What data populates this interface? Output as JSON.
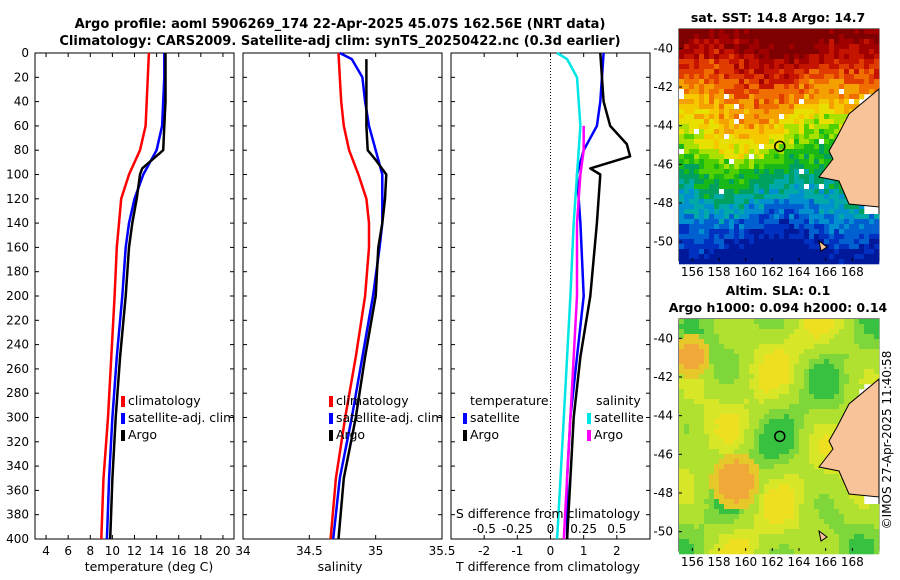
{
  "header": {
    "line1": "Argo profile: aoml 5906269_174 22-Apr-2025 45.07S 162.56E (NRT data)",
    "line2": "Climatology: CARS2009. Satellite-adj clim: synTS_20250422.nc (0.3d earlier)"
  },
  "colors": {
    "red": "#ff0000",
    "blue": "#0000ff",
    "black": "#000000",
    "cyan": "#00e5e5",
    "magenta": "#ff00ff"
  },
  "chart_data": [
    {
      "type": "line",
      "id": "temperature",
      "xlabel": "temperature (deg C)",
      "ylabel": "",
      "xlim": [
        3,
        21
      ],
      "ylim": [
        400,
        0
      ],
      "xticks": [
        4,
        6,
        8,
        10,
        12,
        14,
        16,
        18,
        20
      ],
      "yticks": [
        0,
        20,
        40,
        60,
        80,
        100,
        120,
        140,
        160,
        180,
        200,
        220,
        240,
        260,
        280,
        300,
        320,
        340,
        360,
        380,
        400
      ],
      "legend": [
        "climatology",
        "satellite-adj. clim",
        "Argo"
      ],
      "series": [
        {
          "name": "climatology",
          "color": "red",
          "points": [
            [
              13.3,
              0
            ],
            [
              13.2,
              20
            ],
            [
              13.1,
              40
            ],
            [
              13.0,
              60
            ],
            [
              12.5,
              80
            ],
            [
              11.5,
              100
            ],
            [
              10.8,
              120
            ],
            [
              10.6,
              140
            ],
            [
              10.4,
              160
            ],
            [
              10.2,
              200
            ],
            [
              9.9,
              250
            ],
            [
              9.6,
              300
            ],
            [
              9.2,
              350
            ],
            [
              9.0,
              400
            ]
          ]
        },
        {
          "name": "satellite-adj. clim",
          "color": "blue",
          "points": [
            [
              14.7,
              0
            ],
            [
              14.7,
              20
            ],
            [
              14.6,
              40
            ],
            [
              14.5,
              60
            ],
            [
              14.0,
              80
            ],
            [
              12.8,
              100
            ],
            [
              12.0,
              120
            ],
            [
              11.5,
              140
            ],
            [
              11.2,
              160
            ],
            [
              10.9,
              200
            ],
            [
              10.4,
              250
            ],
            [
              10.0,
              300
            ],
            [
              9.7,
              350
            ],
            [
              9.5,
              400
            ]
          ]
        },
        {
          "name": "Argo",
          "color": "black",
          "points": [
            [
              14.8,
              0
            ],
            [
              14.8,
              20
            ],
            [
              14.8,
              40
            ],
            [
              14.7,
              60
            ],
            [
              14.6,
              80
            ],
            [
              12.7,
              95
            ],
            [
              12.5,
              100
            ],
            [
              12.2,
              120
            ],
            [
              11.8,
              140
            ],
            [
              11.5,
              160
            ],
            [
              11.2,
              200
            ],
            [
              10.7,
              250
            ],
            [
              10.3,
              300
            ],
            [
              10.0,
              350
            ],
            [
              9.8,
              400
            ]
          ]
        }
      ]
    },
    {
      "type": "line",
      "id": "salinity",
      "xlabel": "salinity",
      "ylabel": "",
      "xlim": [
        34,
        35.5
      ],
      "ylim": [
        400,
        0
      ],
      "xticks": [
        34,
        34.5,
        35,
        35.5
      ],
      "legend": [
        "climatology",
        "satellite-adj. clim",
        "Argo"
      ],
      "series": [
        {
          "name": "climatology",
          "color": "red",
          "points": [
            [
              34.72,
              0
            ],
            [
              34.73,
              20
            ],
            [
              34.74,
              40
            ],
            [
              34.76,
              60
            ],
            [
              34.8,
              80
            ],
            [
              34.87,
              100
            ],
            [
              34.93,
              120
            ],
            [
              34.95,
              140
            ],
            [
              34.95,
              160
            ],
            [
              34.92,
              200
            ],
            [
              34.85,
              250
            ],
            [
              34.77,
              300
            ],
            [
              34.7,
              350
            ],
            [
              34.66,
              400
            ]
          ]
        },
        {
          "name": "satellite-adj. clim",
          "color": "blue",
          "points": [
            [
              34.73,
              0
            ],
            [
              34.82,
              5
            ],
            [
              34.9,
              20
            ],
            [
              34.92,
              40
            ],
            [
              34.95,
              60
            ],
            [
              35.0,
              80
            ],
            [
              35.05,
              100
            ],
            [
              35.05,
              120
            ],
            [
              35.05,
              140
            ],
            [
              35.03,
              160
            ],
            [
              34.98,
              200
            ],
            [
              34.9,
              250
            ],
            [
              34.82,
              300
            ],
            [
              34.73,
              350
            ],
            [
              34.68,
              400
            ]
          ]
        },
        {
          "name": "Argo",
          "color": "black",
          "points": [
            [
              34.93,
              5
            ],
            [
              34.93,
              20
            ],
            [
              34.93,
              40
            ],
            [
              34.93,
              60
            ],
            [
              34.94,
              80
            ],
            [
              35.0,
              88
            ],
            [
              35.08,
              100
            ],
            [
              35.07,
              120
            ],
            [
              35.05,
              140
            ],
            [
              35.02,
              160
            ],
            [
              35.0,
              200
            ],
            [
              34.92,
              250
            ],
            [
              34.85,
              300
            ],
            [
              34.76,
              350
            ],
            [
              34.72,
              400
            ]
          ]
        }
      ]
    },
    {
      "type": "line",
      "id": "difference",
      "xlabel": "T difference from climatology",
      "top_xlabel": "S difference from climatology",
      "xlim": [
        -3,
        3
      ],
      "ylim": [
        400,
        0
      ],
      "xticks": [
        -2,
        -1,
        0,
        1,
        2
      ],
      "top_xticks": [
        -0.5,
        -0.25,
        0,
        0.25,
        0.5
      ],
      "legend_left": {
        "title": "temperature",
        "items": [
          "satellite",
          "Argo"
        ]
      },
      "legend_right": {
        "title": "salinity",
        "items": [
          "satellite",
          "Argo"
        ]
      },
      "series": [
        {
          "name": "temperature satellite",
          "color": "blue",
          "points": [
            [
              1.6,
              0
            ],
            [
              1.5,
              40
            ],
            [
              1.4,
              60
            ],
            [
              1.0,
              80
            ],
            [
              0.8,
              100
            ],
            [
              0.9,
              140
            ],
            [
              1.0,
              200
            ],
            [
              0.8,
              250
            ],
            [
              0.6,
              300
            ],
            [
              0.5,
              350
            ],
            [
              0.5,
              400
            ]
          ]
        },
        {
          "name": "temperature Argo",
          "color": "black",
          "points": [
            [
              1.5,
              0
            ],
            [
              1.6,
              40
            ],
            [
              1.8,
              60
            ],
            [
              2.3,
              75
            ],
            [
              2.4,
              85
            ],
            [
              1.2,
              95
            ],
            [
              1.5,
              100
            ],
            [
              1.4,
              140
            ],
            [
              1.2,
              200
            ],
            [
              0.9,
              250
            ],
            [
              0.7,
              300
            ],
            [
              0.6,
              350
            ],
            [
              0.5,
              400
            ]
          ]
        },
        {
          "name": "salinity satellite",
          "color": "cyan",
          "points": [
            [
              0.2,
              0
            ],
            [
              0.5,
              5
            ],
            [
              0.8,
              20
            ],
            [
              0.9,
              60
            ],
            [
              0.8,
              100
            ],
            [
              0.7,
              140
            ],
            [
              0.6,
              200
            ],
            [
              0.5,
              250
            ],
            [
              0.4,
              300
            ],
            [
              0.3,
              350
            ],
            [
              0.2,
              400
            ]
          ]
        },
        {
          "name": "salinity Argo",
          "color": "magenta",
          "points": [
            [
              1.0,
              60
            ],
            [
              1.0,
              80
            ],
            [
              0.9,
              100
            ],
            [
              0.8,
              140
            ],
            [
              0.8,
              200
            ],
            [
              0.7,
              250
            ],
            [
              0.6,
              300
            ],
            [
              0.5,
              350
            ],
            [
              0.4,
              400
            ]
          ]
        }
      ]
    },
    {
      "type": "heatmap",
      "id": "sst-map",
      "title": "sat. SST: 14.8 Argo: 14.7",
      "xticks": [
        156,
        158,
        160,
        162,
        164,
        166,
        168
      ],
      "yticks": [
        -40,
        -42,
        -44,
        -46,
        -48,
        -50
      ],
      "xlim": [
        155,
        170
      ],
      "ylim": [
        -51,
        -39
      ],
      "argo_position": [
        162.56,
        -45.07
      ]
    },
    {
      "type": "heatmap",
      "id": "sla-map",
      "title1": "Altim. SLA: 0.1",
      "title2": "Argo h1000: 0.094 h2000: 0.14",
      "xticks": [
        156,
        158,
        160,
        162,
        164,
        166,
        168
      ],
      "yticks": [
        -40,
        -42,
        -44,
        -46,
        -48,
        -50
      ],
      "xlim": [
        155,
        170
      ],
      "ylim": [
        -51,
        -39
      ],
      "argo_position": [
        162.56,
        -45.07
      ]
    }
  ],
  "credit": "©IMOS 27-Apr-2025 11:40:58"
}
